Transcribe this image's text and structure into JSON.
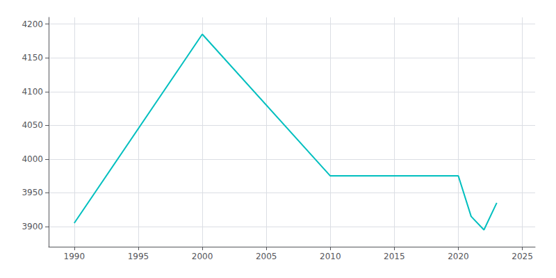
{
  "chart_data": {
    "type": "line",
    "x": [
      1990,
      2000,
      2010,
      2015,
      2020,
      2021,
      2022,
      2023
    ],
    "values": [
      3905,
      4185,
      3975,
      3975,
      3975,
      3915,
      3895,
      3935
    ],
    "color": "#00BFBF",
    "xlim": [
      1988,
      2026
    ],
    "xticks": [
      1990,
      1995,
      2000,
      2005,
      2010,
      2015,
      2020,
      2025
    ],
    "ylim": [
      3870,
      4210
    ],
    "yticks": [
      3900,
      3950,
      4000,
      4050,
      4100,
      4150,
      4200
    ],
    "grid": true
  }
}
